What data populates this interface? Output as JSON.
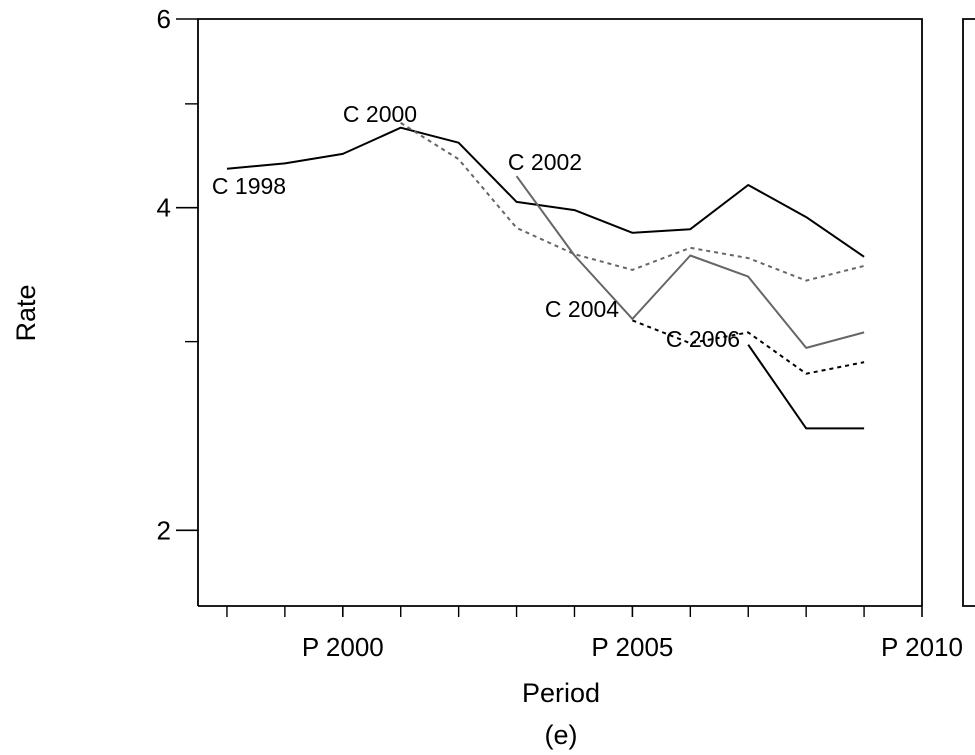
{
  "chart_data": {
    "type": "line",
    "xlabel": "Period",
    "ylabel": "Rate",
    "caption": "(e)",
    "xlim": [
      1997.5,
      2010
    ],
    "ylim": [
      1.7,
      6
    ],
    "y_scale": "log",
    "x_ticks": [
      {
        "value": 2000,
        "label": "P 2000"
      },
      {
        "value": 2005,
        "label": "P 2005"
      },
      {
        "value": 2010,
        "label": "P 2010"
      }
    ],
    "x_minor_ticks": [
      1998,
      1999,
      2001,
      2002,
      2003,
      2004,
      2006,
      2007,
      2008,
      2009
    ],
    "y_ticks": [
      {
        "value": 2,
        "label": "2"
      },
      {
        "value": 4,
        "label": "4"
      },
      {
        "value": 6,
        "label": "6"
      }
    ],
    "y_minor_ticks": [
      3,
      5
    ],
    "series": [
      {
        "name": "C 1998",
        "color": "#000000",
        "dash": "solid",
        "x": [
          1998,
          1999,
          2000,
          2001,
          2002,
          2003,
          2004,
          2005,
          2006,
          2007,
          2008,
          2009
        ],
        "y": [
          4.35,
          4.4,
          4.49,
          4.75,
          4.6,
          4.05,
          3.98,
          3.79,
          3.82,
          4.2,
          3.92,
          3.6
        ]
      },
      {
        "name": "C 2000",
        "color": "#666666",
        "dash": "dotted",
        "x": [
          2001,
          2002,
          2003,
          2004,
          2005,
          2006,
          2007,
          2008,
          2009
        ],
        "y": [
          4.8,
          4.44,
          3.83,
          3.62,
          3.5,
          3.67,
          3.59,
          3.42,
          3.53
        ]
      },
      {
        "name": "C 2002",
        "color": "#666666",
        "dash": "solid",
        "x": [
          2003,
          2004,
          2005,
          2006,
          2007,
          2008,
          2009
        ],
        "y": [
          4.28,
          3.61,
          3.15,
          3.61,
          3.45,
          2.96,
          3.06
        ]
      },
      {
        "name": "C 2004",
        "color": "#000000",
        "dash": "dotted",
        "x": [
          2005,
          2006,
          2007,
          2008,
          2009
        ],
        "y": [
          3.14,
          2.99,
          3.06,
          2.8,
          2.87
        ]
      },
      {
        "name": "C 2006",
        "color": "#000000",
        "dash": "solid",
        "x": [
          2007,
          2008,
          2009
        ],
        "y": [
          2.98,
          2.49,
          2.49
        ]
      }
    ]
  }
}
